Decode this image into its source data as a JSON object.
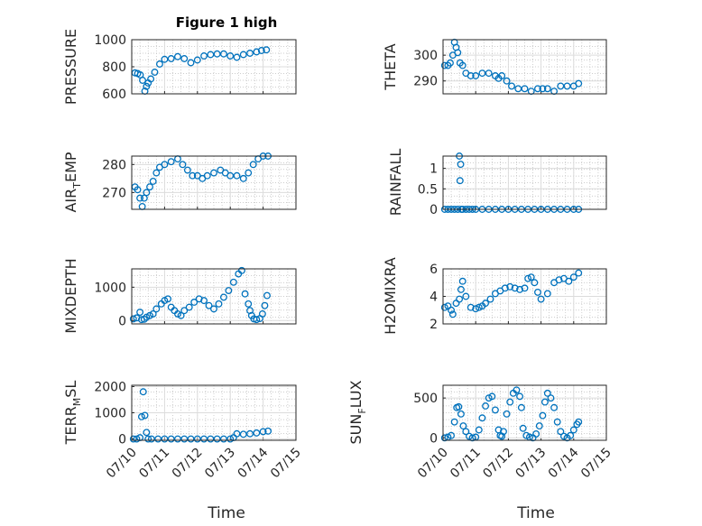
{
  "figure": {
    "title": "Figure 1 high",
    "xlabel": "Time",
    "x_tick_labels": [
      "07/10",
      "07/11",
      "07/12",
      "07/13",
      "07/14",
      "07/15"
    ],
    "marker_color": "#0072BD"
  },
  "chart_data": [
    {
      "type": "scatter",
      "title": "Figure 1 high",
      "ylabel": "PRESSURE",
      "xlim": [
        0,
        5
      ],
      "ylim": [
        600,
        1000
      ],
      "yticks": [
        600,
        800,
        1000
      ],
      "ytick_labels": [
        "600",
        "800",
        "1000"
      ],
      "grid": true,
      "series": [
        {
          "x": [
            0.1,
            0.18,
            0.26,
            0.33,
            0.4,
            0.45,
            0.5,
            0.58,
            0.7,
            0.85,
            1.0,
            1.2,
            1.4,
            1.6,
            1.8,
            2.0,
            2.2,
            2.4,
            2.6,
            2.8,
            3.0,
            3.2,
            3.4,
            3.6,
            3.8,
            3.95,
            4.1
          ],
          "y": [
            755,
            750,
            740,
            700,
            620,
            655,
            680,
            710,
            760,
            820,
            855,
            860,
            875,
            860,
            830,
            850,
            880,
            890,
            895,
            895,
            880,
            870,
            890,
            900,
            910,
            920,
            925
          ]
        }
      ]
    },
    {
      "type": "scatter",
      "ylabel": "THETA",
      "xlim": [
        0,
        5
      ],
      "ylim": [
        285,
        306
      ],
      "yticks": [
        290,
        300
      ],
      "ytick_labels": [
        "290",
        "300"
      ],
      "grid": true,
      "series": [
        {
          "x": [
            0.05,
            0.15,
            0.22,
            0.3,
            0.35,
            0.4,
            0.45,
            0.52,
            0.6,
            0.7,
            0.85,
            1.0,
            1.2,
            1.4,
            1.6,
            1.7,
            1.8,
            1.95,
            2.1,
            2.3,
            2.5,
            2.7,
            2.9,
            3.05,
            3.2,
            3.4,
            3.6,
            3.8,
            4.0,
            4.15
          ],
          "y": [
            296,
            296,
            297,
            300,
            305,
            303,
            301,
            297,
            296,
            293,
            292,
            292,
            293,
            293,
            292,
            291,
            292,
            290,
            288,
            287,
            287,
            286,
            287,
            287,
            287,
            286,
            288,
            288,
            288,
            289
          ]
        }
      ]
    },
    {
      "type": "scatter",
      "ylabel": "AIR_TEMP",
      "xlim": [
        0,
        5
      ],
      "ylim": [
        264,
        283
      ],
      "yticks": [
        270,
        280
      ],
      "ytick_labels": [
        "270",
        "280"
      ],
      "grid": true,
      "series": [
        {
          "x": [
            0.1,
            0.18,
            0.25,
            0.32,
            0.38,
            0.45,
            0.55,
            0.65,
            0.75,
            0.85,
            1.0,
            1.2,
            1.4,
            1.55,
            1.7,
            1.85,
            2.0,
            2.15,
            2.3,
            2.5,
            2.7,
            2.85,
            3.0,
            3.2,
            3.4,
            3.55,
            3.7,
            3.85,
            4.0,
            4.15
          ],
          "y": [
            272,
            271,
            268,
            265,
            268,
            270,
            272,
            274,
            277,
            279,
            280,
            281,
            282,
            280,
            278,
            276,
            276,
            275,
            276,
            277,
            278,
            277,
            276,
            276,
            275,
            277,
            280,
            282,
            283,
            283
          ]
        }
      ]
    },
    {
      "type": "scatter",
      "ylabel": "RAINFALL",
      "xlim": [
        0,
        5
      ],
      "ylim": [
        0,
        1.3
      ],
      "yticks": [
        0,
        0.5,
        1
      ],
      "ytick_labels": [
        "0",
        "0.5",
        "1"
      ],
      "grid": true,
      "series": [
        {
          "x": [
            0.05,
            0.15,
            0.25,
            0.35,
            0.45,
            0.5,
            0.52,
            0.54,
            0.56,
            0.6,
            0.7,
            0.8,
            0.9,
            1.0,
            1.2,
            1.4,
            1.6,
            1.8,
            2.0,
            2.2,
            2.4,
            2.6,
            2.8,
            3.0,
            3.2,
            3.4,
            3.6,
            3.8,
            4.0,
            4.15
          ],
          "y": [
            0,
            0,
            0,
            0,
            0,
            1.3,
            0.7,
            1.1,
            0,
            0,
            0,
            0,
            0,
            0,
            0,
            0,
            0,
            0,
            0,
            0,
            0,
            0,
            0,
            0,
            0,
            0,
            0,
            0,
            0,
            0
          ]
        }
      ]
    },
    {
      "type": "scatter",
      "ylabel": "MIXDEPTH",
      "xlim": [
        0,
        5
      ],
      "ylim": [
        -100,
        1550
      ],
      "yticks": [
        0,
        1000
      ],
      "ytick_labels": [
        "0",
        "1000"
      ],
      "grid": true,
      "series": [
        {
          "x": [
            0.05,
            0.15,
            0.25,
            0.3,
            0.38,
            0.45,
            0.55,
            0.65,
            0.75,
            0.9,
            1.0,
            1.1,
            1.2,
            1.3,
            1.4,
            1.5,
            1.6,
            1.75,
            1.9,
            2.05,
            2.2,
            2.35,
            2.5,
            2.65,
            2.8,
            2.95,
            3.1,
            3.25,
            3.35,
            3.45,
            3.55,
            3.6,
            3.65,
            3.72,
            3.8,
            3.9,
            3.98,
            4.05,
            4.12
          ],
          "y": [
            50,
            80,
            250,
            30,
            40,
            100,
            150,
            200,
            350,
            500,
            600,
            650,
            400,
            300,
            200,
            150,
            300,
            400,
            550,
            650,
            600,
            450,
            350,
            500,
            700,
            900,
            1150,
            1400,
            1500,
            800,
            500,
            300,
            150,
            50,
            30,
            60,
            200,
            450,
            750
          ]
        }
      ]
    },
    {
      "type": "scatter",
      "ylabel": "H2OMIXRA",
      "xlim": [
        0,
        5
      ],
      "ylim": [
        2,
        6
      ],
      "yticks": [
        2,
        4,
        6
      ],
      "ytick_labels": [
        "2",
        "4",
        "6"
      ],
      "grid": true,
      "series": [
        {
          "x": [
            0.05,
            0.15,
            0.25,
            0.3,
            0.4,
            0.5,
            0.55,
            0.6,
            0.7,
            0.85,
            1.0,
            1.1,
            1.2,
            1.3,
            1.45,
            1.6,
            1.75,
            1.9,
            2.05,
            2.2,
            2.35,
            2.5,
            2.6,
            2.7,
            2.8,
            2.9,
            3.0,
            3.2,
            3.4,
            3.55,
            3.7,
            3.85,
            4.0,
            4.15
          ],
          "y": [
            3.2,
            3.3,
            3.0,
            2.7,
            3.5,
            3.8,
            4.5,
            5.1,
            4.0,
            3.2,
            3.1,
            3.2,
            3.3,
            3.5,
            3.8,
            4.2,
            4.4,
            4.6,
            4.7,
            4.6,
            4.5,
            4.6,
            5.3,
            5.4,
            5.0,
            4.3,
            3.8,
            4.2,
            5.0,
            5.2,
            5.3,
            5.1,
            5.4,
            5.7
          ]
        }
      ]
    },
    {
      "type": "scatter",
      "ylabel": "TERR_MSL",
      "xlim": [
        0,
        5
      ],
      "ylim": [
        -50,
        2050
      ],
      "yticks": [
        0,
        1000,
        2000
      ],
      "ytick_labels": [
        "0",
        "1000",
        "2000"
      ],
      "grid": true,
      "series": [
        {
          "x": [
            0.05,
            0.15,
            0.25,
            0.3,
            0.35,
            0.4,
            0.45,
            0.5,
            0.6,
            0.8,
            1.0,
            1.2,
            1.4,
            1.6,
            1.8,
            2.0,
            2.2,
            2.4,
            2.6,
            2.8,
            3.0,
            3.1,
            3.2,
            3.4,
            3.6,
            3.8,
            4.0,
            4.15
          ],
          "y": [
            0,
            0,
            50,
            850,
            1800,
            900,
            250,
            0,
            0,
            0,
            0,
            0,
            0,
            0,
            0,
            0,
            0,
            0,
            0,
            0,
            0,
            50,
            200,
            180,
            200,
            230,
            280,
            300
          ]
        }
      ]
    },
    {
      "type": "scatter",
      "ylabel": "SUN_FLUX",
      "xlim": [
        0,
        5
      ],
      "ylim": [
        -30,
        660
      ],
      "yticks": [
        0,
        500
      ],
      "ytick_labels": [
        "0",
        "500"
      ],
      "grid": true,
      "series": [
        {
          "x": [
            0.05,
            0.15,
            0.25,
            0.35,
            0.42,
            0.48,
            0.55,
            0.62,
            0.7,
            0.8,
            0.9,
            1.0,
            1.1,
            1.2,
            1.3,
            1.4,
            1.5,
            1.6,
            1.7,
            1.75,
            1.8,
            1.85,
            1.95,
            2.05,
            2.15,
            2.25,
            2.35,
            2.4,
            2.45,
            2.55,
            2.65,
            2.75,
            2.85,
            2.95,
            3.05,
            3.12,
            3.2,
            3.3,
            3.4,
            3.5,
            3.6,
            3.7,
            3.8,
            3.9,
            4.0,
            4.1,
            4.15
          ],
          "y": [
            0,
            10,
            30,
            200,
            380,
            390,
            300,
            150,
            80,
            20,
            0,
            10,
            100,
            250,
            400,
            500,
            520,
            350,
            100,
            30,
            20,
            80,
            300,
            450,
            560,
            600,
            520,
            380,
            120,
            30,
            10,
            0,
            50,
            150,
            280,
            450,
            560,
            500,
            380,
            200,
            80,
            20,
            0,
            30,
            100,
            170,
            200
          ]
        }
      ]
    }
  ]
}
